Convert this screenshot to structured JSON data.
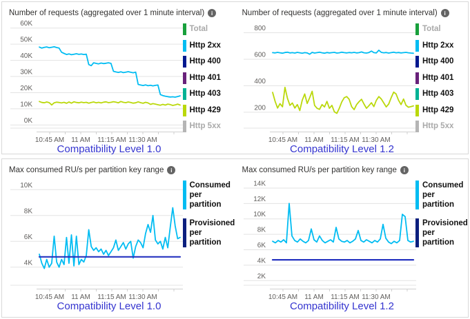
{
  "colors": {
    "grid": "#e3e3e3",
    "axis": "#cfcfcf",
    "axis_label": "#605e5c",
    "title": "#323130",
    "caption_blue": "#3434cf",
    "card_border": "#d8d8d8",
    "cyan": "#00bcf2",
    "yellow_green": "#bad80a",
    "navy_line": "#2633c0"
  },
  "icons": {
    "info": "i"
  },
  "chart_data": [
    {
      "type": "line",
      "title": "Number of requests (aggregated over 1 minute interval)",
      "caption": "Compatibility Level 1.0",
      "x_ticks": [
        "10:45 AM",
        "11 AM",
        "11:15 AM",
        "11:30 AM"
      ],
      "y_ticks": [
        "60K",
        "50K",
        "40K",
        "30K",
        "20K",
        "10K",
        "0K"
      ],
      "y_tick_values": [
        60000,
        50000,
        40000,
        30000,
        20000,
        10000,
        0
      ],
      "ylim": [
        -2000,
        62000
      ],
      "grid": true,
      "legend_position": "right",
      "legend_tall": false,
      "legend": [
        {
          "label": "Total",
          "color": "#18a03c",
          "dimmed": true
        },
        {
          "label": "Http 2xx",
          "color": "#00bcf2",
          "dimmed": false
        },
        {
          "label": "Http 400",
          "color": "#00188f",
          "dimmed": false
        },
        {
          "label": "Http 401",
          "color": "#68217a",
          "dimmed": false
        },
        {
          "label": "Http 403",
          "color": "#00b294",
          "dimmed": false
        },
        {
          "label": "Http 429",
          "color": "#bad80a",
          "dimmed": false
        },
        {
          "label": "Http 5xx",
          "color": "#b5b5b5",
          "dimmed": true
        }
      ],
      "series": [
        {
          "name": "Http 2xx",
          "color": "#00bcf2",
          "width": 1.8,
          "values": [
            48200,
            47600,
            48000,
            48300,
            47800,
            48100,
            48400,
            47900,
            47600,
            45000,
            44300,
            43600,
            44000,
            43500,
            43800,
            44100,
            43700,
            43900,
            43600,
            43800,
            37400,
            36700,
            38500,
            38100,
            37800,
            38300,
            38000,
            38200,
            38500,
            38100,
            33200,
            32800,
            32500,
            32900,
            32400,
            32700,
            33000,
            32600,
            32300,
            32700,
            25100,
            24700,
            24400,
            24800,
            24300,
            24600,
            24200,
            24500,
            24700,
            18800,
            18200,
            17800,
            17500,
            17300,
            17400,
            17200,
            17600,
            18000
          ]
        },
        {
          "name": "Http 429",
          "color": "#bad80a",
          "width": 1.8,
          "values": [
            14500,
            13900,
            13700,
            14200,
            13800,
            12400,
            13700,
            14100,
            13900,
            13600,
            14000,
            13400,
            14200,
            13500,
            14300,
            13900,
            13700,
            14100,
            13800,
            14000,
            13500,
            13900,
            14200,
            13700,
            14000,
            13600,
            14100,
            14300,
            13800,
            14000,
            14400,
            14100,
            13700,
            14500,
            14000,
            13800,
            14200,
            13900,
            13500,
            13700,
            14300,
            13800,
            13400,
            14000,
            13600,
            12700,
            13200,
            12900,
            12500,
            12200,
            12700,
            12300,
            12900,
            12600,
            12100,
            12400,
            12900,
            12300
          ]
        }
      ]
    },
    {
      "type": "line",
      "title": "Number of requests (aggregated over 1 minute interval)",
      "caption": "Compatibility Level 1.2",
      "x_ticks": [
        "10:45 AM",
        "11 AM",
        "11:15 AM",
        "11:30 AM"
      ],
      "y_ticks": [
        "800",
        "600",
        "400",
        "200"
      ],
      "y_tick_values": [
        800,
        600,
        400,
        200
      ],
      "ylim": [
        80,
        860
      ],
      "grid": true,
      "legend_position": "right",
      "legend_tall": false,
      "legend": [
        {
          "label": "Total",
          "color": "#18a03c",
          "dimmed": true
        },
        {
          "label": "Http 2xx",
          "color": "#00bcf2",
          "dimmed": false
        },
        {
          "label": "Http 400",
          "color": "#00188f",
          "dimmed": false
        },
        {
          "label": "Http 401",
          "color": "#68217a",
          "dimmed": false
        },
        {
          "label": "Http 403",
          "color": "#00b294",
          "dimmed": false
        },
        {
          "label": "Http 429",
          "color": "#bad80a",
          "dimmed": false
        },
        {
          "label": "Http 5xx",
          "color": "#b5b5b5",
          "dimmed": true
        }
      ],
      "series": [
        {
          "name": "Http 2xx",
          "color": "#00bcf2",
          "width": 1.8,
          "values": [
            650,
            648,
            652,
            649,
            646,
            651,
            653,
            648,
            650,
            647,
            652,
            649,
            645,
            650,
            648,
            638,
            652,
            647,
            650,
            653,
            649,
            646,
            651,
            648,
            650,
            652,
            647,
            649,
            653,
            650,
            648,
            651,
            649,
            652,
            648,
            650,
            655,
            649,
            647,
            651,
            662,
            650,
            648,
            668,
            652,
            649,
            651,
            647,
            650,
            653,
            649,
            651,
            648,
            650,
            652,
            649,
            647,
            645
          ]
        },
        {
          "name": "Http 429",
          "color": "#bad80a",
          "width": 1.8,
          "values": [
            350,
            283,
            232,
            265,
            241,
            388,
            305,
            252,
            270,
            232,
            258,
            213,
            290,
            338,
            266,
            310,
            358,
            252,
            230,
            222,
            258,
            240,
            282,
            230,
            252,
            203,
            192,
            230,
            278,
            310,
            318,
            298,
            242,
            220,
            258,
            280,
            298,
            262,
            230,
            250,
            272,
            243,
            290,
            318,
            300,
            270,
            240,
            262,
            310,
            352,
            338,
            290,
            258,
            300,
            252,
            238,
            243,
            248
          ]
        }
      ]
    },
    {
      "type": "line",
      "title": "Max consumed RU/s per partition key range",
      "caption": "Compatibility Level 1.0",
      "x_ticks": [
        "10:45 AM",
        "11 AM",
        "11:15 AM",
        "11:30 AM"
      ],
      "y_ticks": [
        "10K",
        "8K",
        "6K",
        "4K"
      ],
      "y_tick_values": [
        10000,
        8000,
        6000,
        4000
      ],
      "ylim": [
        2600,
        10600
      ],
      "grid": true,
      "legend_position": "right",
      "legend_tall": true,
      "legend": [
        {
          "label": "Consumed per partition",
          "color": "#00bcf2",
          "dimmed": false
        },
        {
          "label": "Provisioned per partition",
          "color": "#0b1f7e",
          "dimmed": false
        }
      ],
      "series": [
        {
          "name": "Consumed per partition",
          "color": "#00bcf2",
          "width": 1.8,
          "values": [
            5000,
            4300,
            3900,
            4600,
            4000,
            4300,
            6400,
            4400,
            4000,
            4600,
            4200,
            6300,
            4300,
            6500,
            4100,
            6400,
            4200,
            4600,
            4400,
            4900,
            6900,
            5600,
            5300,
            5500,
            5200,
            5400,
            5000,
            5300,
            4900,
            5200,
            5500,
            6100,
            5300,
            5600,
            5900,
            5400,
            5800,
            6000,
            4700,
            5600,
            6100,
            5900,
            5500,
            6600,
            7300,
            6700,
            8000,
            6100,
            5800,
            6000,
            5400,
            6300,
            5500,
            7100,
            8600,
            7200,
            6200,
            6300
          ]
        },
        {
          "name": "Provisioned per partition",
          "color": "#2633c0",
          "width": 2.2,
          "values": [
            4800,
            4800
          ]
        }
      ]
    },
    {
      "type": "line",
      "title": "Max consumed RU/s per partition key range",
      "caption": "Compatibility Level 1.2",
      "x_ticks": [
        "10:45 AM",
        "11 AM",
        "11:15 AM",
        "11:30 AM"
      ],
      "y_ticks": [
        "14K",
        "12K",
        "10K",
        "8K",
        "6K",
        "4K",
        "2K"
      ],
      "y_tick_values": [
        14000,
        12000,
        10000,
        8000,
        6000,
        4000,
        2000
      ],
      "ylim": [
        1400,
        14800
      ],
      "grid": true,
      "legend_position": "right",
      "legend_tall": true,
      "legend": [
        {
          "label": "Consumed per partition",
          "color": "#00bcf2",
          "dimmed": false
        },
        {
          "label": "Provisioned per partition",
          "color": "#0b1f7e",
          "dimmed": false
        }
      ],
      "series": [
        {
          "name": "Consumed per partition",
          "color": "#00bcf2",
          "width": 1.8,
          "values": [
            7100,
            6900,
            7200,
            7000,
            7300,
            6900,
            12000,
            7800,
            7200,
            7000,
            7400,
            7100,
            6900,
            7200,
            8700,
            7300,
            7000,
            7800,
            7200,
            6900,
            7100,
            7300,
            7000,
            8900,
            7400,
            7100,
            7000,
            7200,
            6900,
            7100,
            7400,
            8500,
            7200,
            7000,
            7300,
            7100,
            6900,
            7200,
            7000,
            7400,
            9300,
            7500,
            7000,
            6800,
            7100,
            6900,
            7200,
            10600,
            10300,
            7200,
            7000,
            7100
          ]
        },
        {
          "name": "Provisioned per partition",
          "color": "#2633c0",
          "width": 2.2,
          "values": [
            4700,
            4700
          ]
        }
      ]
    }
  ]
}
